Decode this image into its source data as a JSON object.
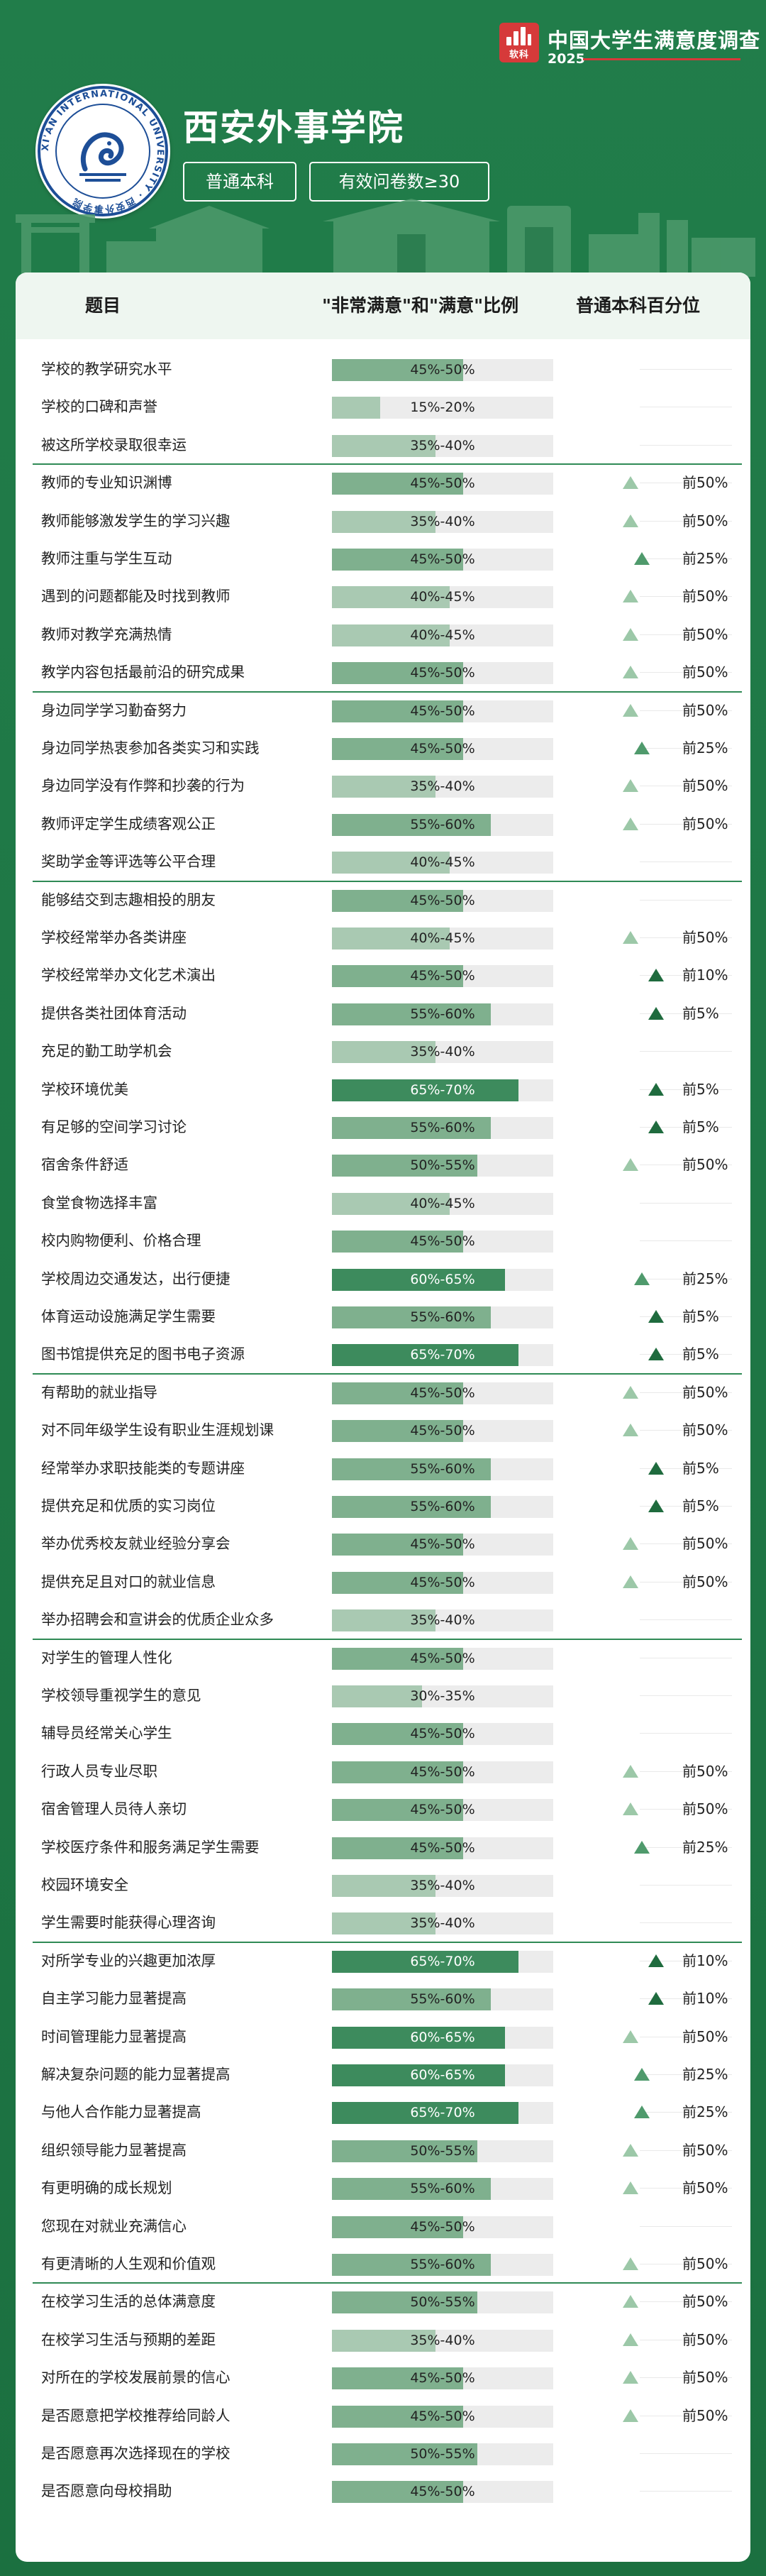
{
  "brand": {
    "logo_text": "软科",
    "title": "中国大学生满意度调查",
    "year": "2025"
  },
  "school": {
    "name": "西安外事学院",
    "type_tag": "普通本科",
    "sample_tag": "有效问卷数≥30",
    "seal_text": "XI'AN INTERNATIONAL UNIVERSITY · 西安外事学院"
  },
  "table": {
    "header": {
      "item": "题目",
      "ratio": "\"非常满意\"和\"满意\"比例",
      "percentile": "普通本科百分位"
    },
    "groups": [
      {
        "rows": [
          {
            "label": "学校的教学研究水平",
            "ratio": "45%-50%",
            "level": 0.475,
            "percentile": ""
          },
          {
            "label": "学校的口碑和声誉",
            "ratio": "15%-20%",
            "level": 0.175,
            "percentile": ""
          },
          {
            "label": "被这所学校录取很幸运",
            "ratio": "35%-40%",
            "level": 0.375,
            "percentile": ""
          }
        ]
      },
      {
        "rows": [
          {
            "label": "教师的专业知识渊博",
            "ratio": "45%-50%",
            "level": 0.475,
            "percentile": "前50%"
          },
          {
            "label": "教师能够激发学生的学习兴趣",
            "ratio": "35%-40%",
            "level": 0.375,
            "percentile": "前50%"
          },
          {
            "label": "教师注重与学生互动",
            "ratio": "45%-50%",
            "level": 0.475,
            "percentile": "前25%"
          },
          {
            "label": "遇到的问题都能及时找到教师",
            "ratio": "40%-45%",
            "level": 0.425,
            "percentile": "前50%"
          },
          {
            "label": "教师对教学充满热情",
            "ratio": "40%-45%",
            "level": 0.425,
            "percentile": "前50%"
          },
          {
            "label": "教学内容包括最前沿的研究成果",
            "ratio": "45%-50%",
            "level": 0.475,
            "percentile": "前50%"
          }
        ]
      },
      {
        "rows": [
          {
            "label": "身边同学学习勤奋努力",
            "ratio": "45%-50%",
            "level": 0.475,
            "percentile": "前50%"
          },
          {
            "label": "身边同学热衷参加各类实习和实践",
            "ratio": "45%-50%",
            "level": 0.475,
            "percentile": "前25%"
          },
          {
            "label": "身边同学没有作弊和抄袭的行为",
            "ratio": "35%-40%",
            "level": 0.375,
            "percentile": "前50%"
          },
          {
            "label": "教师评定学生成绩客观公正",
            "ratio": "55%-60%",
            "level": 0.575,
            "percentile": "前50%"
          },
          {
            "label": "奖助学金等评选等公平合理",
            "ratio": "40%-45%",
            "level": 0.425,
            "percentile": ""
          }
        ]
      },
      {
        "rows": [
          {
            "label": "能够结交到志趣相投的朋友",
            "ratio": "45%-50%",
            "level": 0.475,
            "percentile": ""
          },
          {
            "label": "学校经常举办各类讲座",
            "ratio": "40%-45%",
            "level": 0.425,
            "percentile": "前50%"
          },
          {
            "label": "学校经常举办文化艺术演出",
            "ratio": "45%-50%",
            "level": 0.475,
            "percentile": "前10%"
          },
          {
            "label": "提供各类社团体育活动",
            "ratio": "55%-60%",
            "level": 0.575,
            "percentile": "前5%"
          },
          {
            "label": "充足的勤工助学机会",
            "ratio": "35%-40%",
            "level": 0.375,
            "percentile": ""
          },
          {
            "label": "学校环境优美",
            "ratio": "65%-70%",
            "level": 0.675,
            "percentile": "前5%"
          },
          {
            "label": "有足够的空间学习讨论",
            "ratio": "55%-60%",
            "level": 0.575,
            "percentile": "前5%"
          },
          {
            "label": "宿舍条件舒适",
            "ratio": "50%-55%",
            "level": 0.525,
            "percentile": "前50%"
          },
          {
            "label": "食堂食物选择丰富",
            "ratio": "40%-45%",
            "level": 0.425,
            "percentile": ""
          },
          {
            "label": "校内购物便利、价格合理",
            "ratio": "45%-50%",
            "level": 0.475,
            "percentile": ""
          },
          {
            "label": "学校周边交通发达，出行便捷",
            "ratio": "60%-65%",
            "level": 0.625,
            "percentile": "前25%"
          },
          {
            "label": "体育运动设施满足学生需要",
            "ratio": "55%-60%",
            "level": 0.575,
            "percentile": "前5%"
          },
          {
            "label": "图书馆提供充足的图书电子资源",
            "ratio": "65%-70%",
            "level": 0.675,
            "percentile": "前5%"
          }
        ]
      },
      {
        "rows": [
          {
            "label": "有帮助的就业指导",
            "ratio": "45%-50%",
            "level": 0.475,
            "percentile": "前50%"
          },
          {
            "label": "对不同年级学生设有职业生涯规划课",
            "ratio": "45%-50%",
            "level": 0.475,
            "percentile": "前50%"
          },
          {
            "label": "经常举办求职技能类的专题讲座",
            "ratio": "55%-60%",
            "level": 0.575,
            "percentile": "前5%"
          },
          {
            "label": "提供充足和优质的实习岗位",
            "ratio": "55%-60%",
            "level": 0.575,
            "percentile": "前5%"
          },
          {
            "label": "举办优秀校友就业经验分享会",
            "ratio": "45%-50%",
            "level": 0.475,
            "percentile": "前50%"
          },
          {
            "label": "提供充足且对口的就业信息",
            "ratio": "45%-50%",
            "level": 0.475,
            "percentile": "前50%"
          },
          {
            "label": "举办招聘会和宣讲会的优质企业众多",
            "ratio": "35%-40%",
            "level": 0.375,
            "percentile": ""
          }
        ]
      },
      {
        "rows": [
          {
            "label": "对学生的管理人性化",
            "ratio": "45%-50%",
            "level": 0.475,
            "percentile": ""
          },
          {
            "label": "学校领导重视学生的意见",
            "ratio": "30%-35%",
            "level": 0.325,
            "percentile": ""
          },
          {
            "label": "辅导员经常关心学生",
            "ratio": "45%-50%",
            "level": 0.475,
            "percentile": ""
          },
          {
            "label": "行政人员专业尽职",
            "ratio": "45%-50%",
            "level": 0.475,
            "percentile": "前50%"
          },
          {
            "label": "宿舍管理人员待人亲切",
            "ratio": "45%-50%",
            "level": 0.475,
            "percentile": "前50%"
          },
          {
            "label": "学校医疗条件和服务满足学生需要",
            "ratio": "45%-50%",
            "level": 0.475,
            "percentile": "前25%"
          },
          {
            "label": "校园环境安全",
            "ratio": "35%-40%",
            "level": 0.375,
            "percentile": ""
          },
          {
            "label": "学生需要时能获得心理咨询",
            "ratio": "35%-40%",
            "level": 0.375,
            "percentile": ""
          }
        ]
      },
      {
        "rows": [
          {
            "label": "对所学专业的兴趣更加浓厚",
            "ratio": "65%-70%",
            "level": 0.675,
            "percentile": "前10%"
          },
          {
            "label": "自主学习能力显著提高",
            "ratio": "55%-60%",
            "level": 0.575,
            "percentile": "前10%"
          },
          {
            "label": "时间管理能力显著提高",
            "ratio": "60%-65%",
            "level": 0.625,
            "percentile": "前50%"
          },
          {
            "label": "解决复杂问题的能力显著提高",
            "ratio": "60%-65%",
            "level": 0.625,
            "percentile": "前25%"
          },
          {
            "label": "与他人合作能力显著提高",
            "ratio": "65%-70%",
            "level": 0.675,
            "percentile": "前25%"
          },
          {
            "label": "组织领导能力显著提高",
            "ratio": "50%-55%",
            "level": 0.525,
            "percentile": "前50%"
          },
          {
            "label": "有更明确的成长规划",
            "ratio": "55%-60%",
            "level": 0.575,
            "percentile": "前50%"
          },
          {
            "label": "您现在对就业充满信心",
            "ratio": "45%-50%",
            "level": 0.475,
            "percentile": ""
          },
          {
            "label": "有更清晰的人生观和价值观",
            "ratio": "55%-60%",
            "level": 0.575,
            "percentile": "前50%"
          }
        ]
      },
      {
        "rows": [
          {
            "label": "在校学习生活的总体满意度",
            "ratio": "50%-55%",
            "level": 0.525,
            "percentile": "前50%"
          },
          {
            "label": "在校学习生活与预期的差距",
            "ratio": "35%-40%",
            "level": 0.375,
            "percentile": "前50%"
          },
          {
            "label": "对所在的学校发展前景的信心",
            "ratio": "45%-50%",
            "level": 0.475,
            "percentile": "前50%"
          },
          {
            "label": "是否愿意把学校推荐给同龄人",
            "ratio": "45%-50%",
            "level": 0.475,
            "percentile": "前50%"
          },
          {
            "label": "是否愿意再次选择现在的学校",
            "ratio": "50%-55%",
            "level": 0.525,
            "percentile": ""
          },
          {
            "label": "是否愿意向母校捐助",
            "ratio": "45%-50%",
            "level": 0.475,
            "percentile": ""
          }
        ]
      }
    ]
  }
}
